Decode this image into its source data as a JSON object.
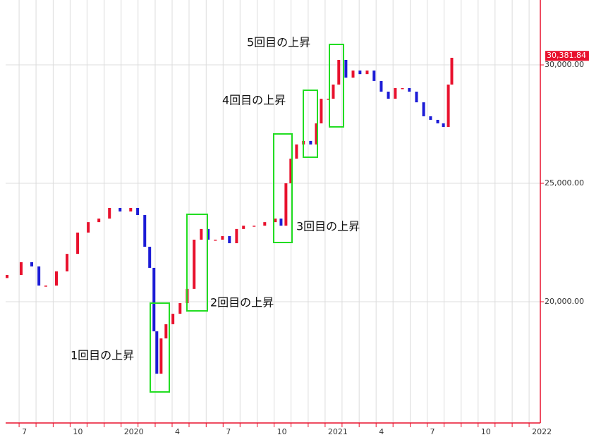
{
  "chart_data": {
    "type": "candlestick",
    "x": [
      2019.441,
      2019.51,
      2019.562,
      2019.597,
      2019.631,
      2019.683,
      2019.735,
      2019.787,
      2019.839,
      2019.891,
      2019.943,
      2019.995,
      2020.047,
      2020.081,
      2020.116,
      2020.14,
      2020.161,
      2020.175,
      2020.196,
      2020.22,
      2020.254,
      2020.289,
      2020.324,
      2020.358,
      2020.393,
      2020.427,
      2020.462,
      2020.497,
      2020.531,
      2020.566,
      2020.6,
      2020.652,
      2020.704,
      2020.756,
      2020.784,
      2020.808,
      2020.832,
      2020.86,
      2020.894,
      2020.929,
      2020.957,
      2020.981,
      2021.016,
      2021.04,
      2021.067,
      2021.102,
      2021.137,
      2021.171,
      2021.206,
      2021.24,
      2021.275,
      2021.31,
      2021.344,
      2021.379,
      2021.413,
      2021.448,
      2021.483,
      2021.517,
      2021.552,
      2021.58,
      2021.604,
      2021.621
    ],
    "open": [
      21000,
      21130,
      21670,
      21490,
      20680,
      20680,
      21280,
      22020,
      22920,
      23360,
      23510,
      23960,
      23810,
      23960,
      23660,
      22320,
      21430,
      18750,
      16960,
      18450,
      19050,
      19490,
      19940,
      20540,
      22620,
      23070,
      22620,
      22620,
      22770,
      22470,
      23070,
      23210,
      23210,
      23360,
      23510,
      23210,
      25000,
      26040,
      26640,
      26790,
      26640,
      27530,
      28570,
      28570,
      29170,
      30210,
      29460,
      29760,
      29610,
      29760,
      29320,
      28870,
      28570,
      29020,
      29020,
      28870,
      28420,
      27830,
      27680,
      27530,
      27380,
      29170
    ],
    "close": [
      21130,
      21670,
      21490,
      20680,
      20680,
      21280,
      22020,
      22920,
      23360,
      23510,
      23960,
      23810,
      23960,
      23660,
      22320,
      21430,
      18750,
      16960,
      18450,
      19050,
      19490,
      19940,
      20540,
      22620,
      23070,
      22620,
      22620,
      22770,
      22470,
      23070,
      23210,
      23210,
      23360,
      23510,
      23210,
      25000,
      26040,
      26640,
      26790,
      26640,
      27530,
      28570,
      28570,
      29170,
      30210,
      29460,
      29760,
      29610,
      29760,
      29320,
      28870,
      28570,
      29020,
      29020,
      28870,
      28420,
      27830,
      27680,
      27530,
      27380,
      29170,
      30300
    ],
    "up_color": "#e8112d",
    "down_color": "#1c1cd6",
    "xlim": [
      2019.434,
      2022.055
    ],
    "xticks": [
      {
        "value": 2019.5,
        "label": "7"
      },
      {
        "value": 2019.583,
        "label": null
      },
      {
        "value": 2019.667,
        "label": null
      },
      {
        "value": 2019.75,
        "label": "10"
      },
      {
        "value": 2019.833,
        "label": null
      },
      {
        "value": 2019.917,
        "label": null
      },
      {
        "value": 2020,
        "label": "2020"
      },
      {
        "value": 2020.083,
        "label": null
      },
      {
        "value": 2020.167,
        "label": null
      },
      {
        "value": 2020.25,
        "label": "4"
      },
      {
        "value": 2020.333,
        "label": null
      },
      {
        "value": 2020.417,
        "label": null
      },
      {
        "value": 2020.5,
        "label": "7"
      },
      {
        "value": 2020.583,
        "label": null
      },
      {
        "value": 2020.667,
        "label": null
      },
      {
        "value": 2020.75,
        "label": "10"
      },
      {
        "value": 2020.833,
        "label": null
      },
      {
        "value": 2020.917,
        "label": null
      },
      {
        "value": 2021,
        "label": "2021"
      },
      {
        "value": 2021.083,
        "label": null
      },
      {
        "value": 2021.167,
        "label": null
      },
      {
        "value": 2021.25,
        "label": "4"
      },
      {
        "value": 2021.333,
        "label": null
      },
      {
        "value": 2021.417,
        "label": null
      },
      {
        "value": 2021.5,
        "label": "7"
      },
      {
        "value": 2021.583,
        "label": null
      },
      {
        "value": 2021.667,
        "label": null
      },
      {
        "value": 2021.75,
        "label": "10"
      },
      {
        "value": 2021.833,
        "label": null
      },
      {
        "value": 2021.917,
        "label": null
      },
      {
        "value": 2022,
        "label": "2022"
      }
    ],
    "ylim": [
      14880,
      32740
    ],
    "yticks": [
      {
        "value": 20000,
        "label": "20,000.00"
      },
      {
        "value": 25000,
        "label": "25,000.00"
      },
      {
        "value": 30000,
        "label": "30,000.00"
      }
    ],
    "last_price": {
      "value": 30381.84,
      "label": "30,381.84"
    },
    "grid": true,
    "annotations": [
      "1回目の上昇",
      "2回目の上昇",
      "3回目の上昇",
      "4回目の上昇",
      "5回目の上昇"
    ]
  }
}
